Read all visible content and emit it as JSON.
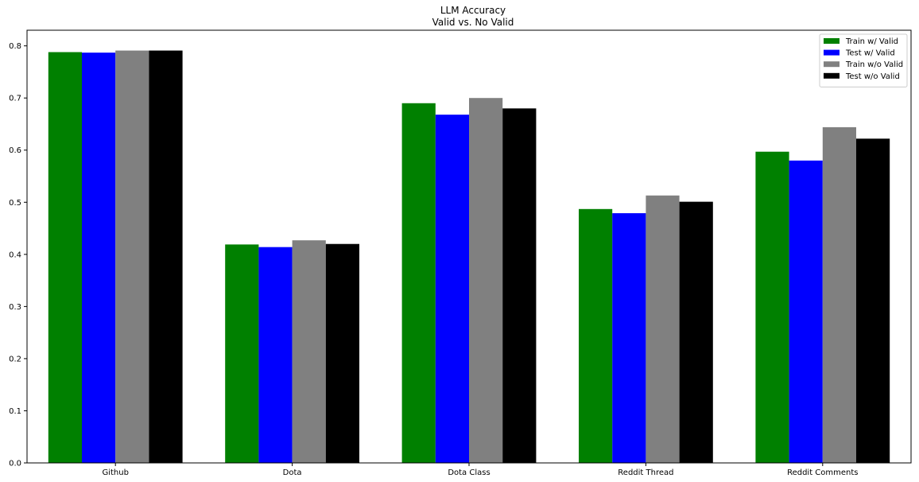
{
  "chart_data": {
    "type": "bar",
    "title": "LLM Accuracy",
    "subtitle": "Valid vs. No Valid",
    "xlabel": "",
    "ylabel": "",
    "categories": [
      "Github",
      "Dota",
      "Dota Class",
      "Reddit Thread",
      "Reddit Comments"
    ],
    "series": [
      {
        "name": "Train w/ Valid",
        "color": "#008000",
        "values": [
          0.788,
          0.419,
          0.69,
          0.487,
          0.597
        ]
      },
      {
        "name": "Test w/ Valid",
        "color": "#0000ff",
        "values": [
          0.787,
          0.414,
          0.668,
          0.479,
          0.58
        ]
      },
      {
        "name": "Train w/o Valid",
        "color": "#808080",
        "values": [
          0.791,
          0.427,
          0.7,
          0.513,
          0.644
        ]
      },
      {
        "name": "Test w/o Valid",
        "color": "#000000",
        "values": [
          0.791,
          0.42,
          0.68,
          0.501,
          0.622
        ]
      }
    ],
    "ylim": [
      0,
      0.83
    ],
    "yticks": [
      0.0,
      0.1,
      0.2,
      0.3,
      0.4,
      0.5,
      0.6,
      0.7,
      0.8
    ],
    "ytick_labels": [
      "0.0",
      "0.1",
      "0.2",
      "0.3",
      "0.4",
      "0.5",
      "0.6",
      "0.7",
      "0.8"
    ],
    "grid": false,
    "legend_position": "top-right"
  }
}
